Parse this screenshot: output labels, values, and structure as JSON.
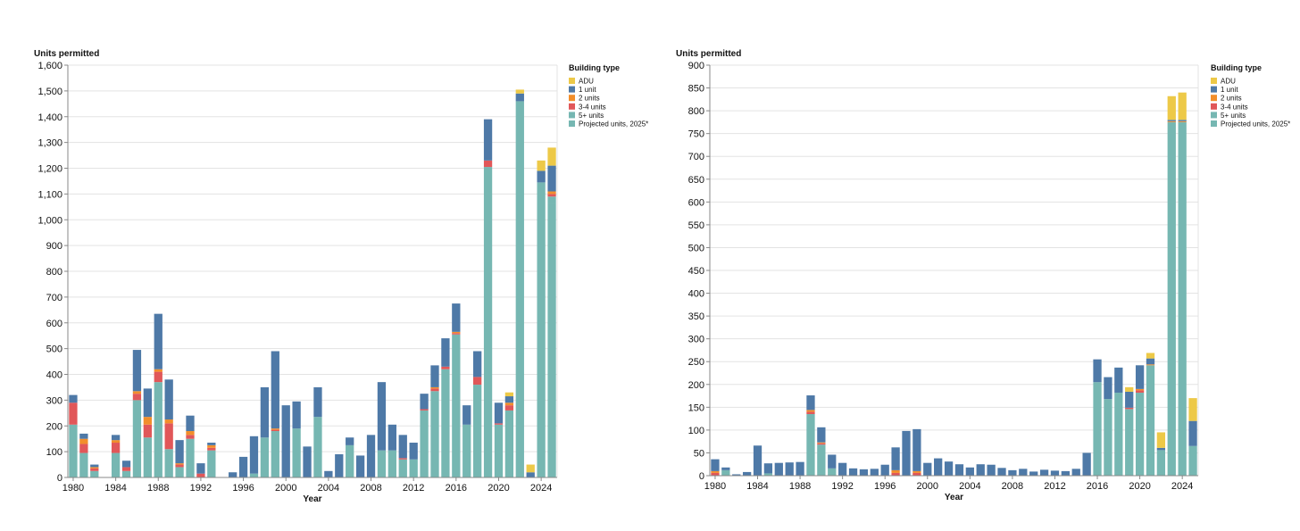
{
  "colors": {
    "ADU": "#EDC948",
    "1 unit": "#4E79A7",
    "2 units": "#F28E2B",
    "3-4 units": "#E15759",
    "5+ units": "#76B7B2",
    "Projected units, 2025*": "#76B7B2"
  },
  "chart_data": [
    {
      "type": "bar",
      "stacked": true,
      "ylabel": "Units permitted",
      "xlabel": "Year",
      "ylim": [
        0,
        1600
      ],
      "yticks": [
        0,
        100,
        200,
        300,
        400,
        500,
        600,
        700,
        800,
        900,
        1000,
        1100,
        1200,
        1300,
        1400,
        1500,
        1600
      ],
      "yticklabels": [
        "0",
        "100",
        "200",
        "300",
        "400",
        "500",
        "600",
        "700",
        "800",
        "900",
        "1,000",
        "1,100",
        "1,200",
        "1,300",
        "1,400",
        "1,500",
        "1,600"
      ],
      "xticklabels": [
        "1980",
        "1984",
        "1988",
        "1992",
        "1996",
        "2000",
        "2004",
        "2008",
        "2012",
        "2016",
        "2020",
        "2024"
      ],
      "legend_title": "Building type",
      "legend": [
        "ADU",
        "1 unit",
        "2 units",
        "3-4 units",
        "5+ units",
        "Projected units, 2025*"
      ],
      "legend_position": "right",
      "categories": [
        1980,
        1981,
        1982,
        1983,
        1984,
        1985,
        1986,
        1987,
        1988,
        1989,
        1990,
        1991,
        1992,
        1993,
        1994,
        1995,
        1996,
        1997,
        1998,
        1999,
        2000,
        2001,
        2002,
        2003,
        2004,
        2005,
        2006,
        2007,
        2008,
        2009,
        2010,
        2011,
        2012,
        2013,
        2014,
        2015,
        2016,
        2017,
        2018,
        2019,
        2020,
        2021,
        2022,
        2023,
        2024,
        2025
      ],
      "series": [
        {
          "name": "5+ units",
          "values": [
            205,
            95,
            25,
            0,
            95,
            25,
            300,
            155,
            370,
            110,
            40,
            150,
            0,
            105,
            0,
            0,
            0,
            15,
            155,
            180,
            0,
            190,
            0,
            235,
            0,
            0,
            125,
            0,
            0,
            105,
            105,
            70,
            70,
            260,
            335,
            420,
            555,
            205,
            360,
            1205,
            205,
            260,
            1460,
            0,
            1145,
            1065
          ]
        },
        {
          "name": "Projected units, 2025*",
          "values": [
            0,
            0,
            0,
            0,
            0,
            0,
            0,
            0,
            0,
            0,
            0,
            0,
            0,
            0,
            0,
            0,
            0,
            0,
            0,
            0,
            0,
            0,
            0,
            0,
            0,
            0,
            0,
            0,
            0,
            0,
            0,
            0,
            0,
            0,
            0,
            0,
            0,
            0,
            0,
            0,
            0,
            0,
            0,
            0,
            0,
            25
          ]
        },
        {
          "name": "3-4 units",
          "values": [
            85,
            35,
            10,
            0,
            40,
            15,
            25,
            50,
            40,
            100,
            10,
            15,
            15,
            10,
            0,
            0,
            0,
            0,
            0,
            5,
            0,
            0,
            0,
            0,
            0,
            0,
            0,
            0,
            0,
            0,
            0,
            5,
            0,
            5,
            10,
            10,
            5,
            0,
            30,
            25,
            5,
            20,
            0,
            0,
            0,
            10
          ]
        },
        {
          "name": "2 units",
          "values": [
            0,
            20,
            5,
            0,
            10,
            0,
            10,
            30,
            10,
            15,
            5,
            15,
            0,
            10,
            0,
            0,
            0,
            0,
            0,
            5,
            0,
            0,
            0,
            0,
            0,
            0,
            0,
            0,
            0,
            0,
            0,
            0,
            0,
            0,
            5,
            0,
            5,
            0,
            0,
            0,
            0,
            10,
            0,
            0,
            0,
            10
          ]
        },
        {
          "name": "1 unit",
          "values": [
            30,
            20,
            10,
            0,
            20,
            25,
            160,
            110,
            215,
            155,
            90,
            60,
            40,
            10,
            0,
            20,
            80,
            145,
            195,
            300,
            280,
            105,
            120,
            115,
            25,
            90,
            30,
            85,
            165,
            265,
            100,
            90,
            65,
            60,
            85,
            110,
            110,
            75,
            100,
            160,
            80,
            25,
            30,
            20,
            45,
            100
          ]
        },
        {
          "name": "ADU",
          "values": [
            0,
            0,
            0,
            0,
            0,
            0,
            0,
            0,
            0,
            0,
            0,
            0,
            0,
            0,
            0,
            0,
            0,
            0,
            0,
            0,
            0,
            0,
            0,
            0,
            0,
            0,
            0,
            0,
            0,
            0,
            0,
            0,
            0,
            0,
            0,
            0,
            0,
            0,
            0,
            0,
            0,
            15,
            15,
            30,
            40,
            70
          ]
        }
      ]
    },
    {
      "type": "bar",
      "stacked": true,
      "ylabel": "Units permitted",
      "xlabel": "Year",
      "ylim": [
        0,
        900
      ],
      "yticks": [
        0,
        50,
        100,
        150,
        200,
        250,
        300,
        350,
        400,
        450,
        500,
        550,
        600,
        650,
        700,
        750,
        800,
        850,
        900
      ],
      "yticklabels": [
        "0",
        "50",
        "100",
        "150",
        "200",
        "250",
        "300",
        "350",
        "400",
        "450",
        "500",
        "550",
        "600",
        "650",
        "700",
        "750",
        "800",
        "850",
        "900"
      ],
      "xticklabels": [
        "1980",
        "1984",
        "1988",
        "1992",
        "1996",
        "2000",
        "2004",
        "2008",
        "2012",
        "2016",
        "2020",
        "2024"
      ],
      "legend_title": "Building type",
      "legend": [
        "ADU",
        "1 unit",
        "2 units",
        "3-4 units",
        "5+ units",
        "Projected units, 2025*"
      ],
      "legend_position": "right",
      "categories": [
        1980,
        1981,
        1982,
        1983,
        1984,
        1985,
        1986,
        1987,
        1988,
        1989,
        1990,
        1991,
        1992,
        1993,
        1994,
        1995,
        1996,
        1997,
        1998,
        1999,
        2000,
        2001,
        2002,
        2003,
        2004,
        2005,
        2006,
        2007,
        2008,
        2009,
        2010,
        2011,
        2012,
        2013,
        2014,
        2015,
        2016,
        2017,
        2018,
        2019,
        2020,
        2021,
        2022,
        2023,
        2024,
        2025
      ],
      "series": [
        {
          "name": "5+ units",
          "values": [
            0,
            12,
            0,
            0,
            0,
            5,
            0,
            0,
            0,
            135,
            68,
            16,
            0,
            0,
            0,
            0,
            0,
            0,
            0,
            0,
            0,
            0,
            0,
            0,
            0,
            0,
            0,
            0,
            0,
            0,
            0,
            0,
            0,
            0,
            0,
            0,
            205,
            168,
            182,
            146,
            182,
            242,
            56,
            775,
            775,
            65
          ]
        },
        {
          "name": "Projected units, 2025*",
          "values": [
            0,
            0,
            0,
            0,
            0,
            0,
            0,
            0,
            0,
            0,
            0,
            0,
            0,
            0,
            0,
            0,
            0,
            0,
            0,
            0,
            0,
            0,
            0,
            0,
            0,
            0,
            0,
            0,
            0,
            0,
            0,
            0,
            0,
            0,
            0,
            0,
            0,
            0,
            0,
            0,
            0,
            0,
            0,
            0,
            0,
            0
          ]
        },
        {
          "name": "3-4 units",
          "values": [
            6,
            0,
            0,
            0,
            0,
            0,
            0,
            0,
            0,
            5,
            3,
            0,
            0,
            0,
            0,
            0,
            0,
            6,
            0,
            6,
            0,
            0,
            0,
            0,
            0,
            0,
            0,
            0,
            0,
            0,
            0,
            0,
            0,
            0,
            0,
            0,
            0,
            0,
            0,
            3,
            5,
            0,
            0,
            0,
            0,
            0
          ]
        },
        {
          "name": "2 units",
          "values": [
            4,
            0,
            0,
            0,
            0,
            0,
            0,
            0,
            0,
            4,
            2,
            0,
            0,
            0,
            0,
            0,
            0,
            6,
            0,
            4,
            0,
            0,
            0,
            0,
            0,
            0,
            0,
            0,
            0,
            0,
            0,
            0,
            0,
            0,
            0,
            0,
            0,
            0,
            0,
            0,
            3,
            2,
            0,
            2,
            2,
            0
          ]
        },
        {
          "name": "1 unit",
          "values": [
            26,
            6,
            3,
            8,
            66,
            22,
            28,
            29,
            30,
            32,
            33,
            30,
            28,
            16,
            14,
            15,
            24,
            50,
            98,
            92,
            28,
            38,
            31,
            25,
            18,
            25,
            24,
            17,
            12,
            15,
            9,
            13,
            11,
            10,
            15,
            50,
            50,
            48,
            55,
            35,
            52,
            13,
            5,
            3,
            3,
            55
          ]
        },
        {
          "name": "ADU",
          "values": [
            0,
            0,
            0,
            0,
            0,
            0,
            0,
            0,
            0,
            0,
            0,
            0,
            0,
            0,
            0,
            0,
            0,
            0,
            0,
            0,
            0,
            0,
            0,
            0,
            0,
            0,
            0,
            0,
            0,
            0,
            0,
            0,
            0,
            0,
            0,
            0,
            0,
            0,
            0,
            10,
            0,
            12,
            34,
            52,
            60,
            50
          ]
        }
      ]
    }
  ]
}
